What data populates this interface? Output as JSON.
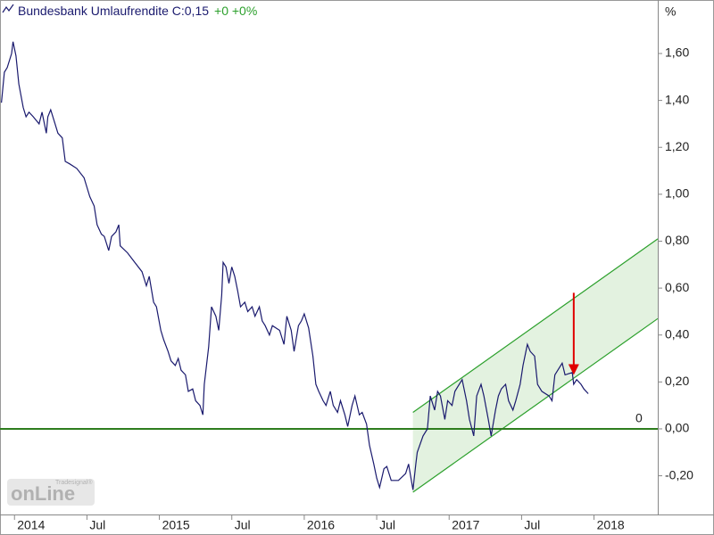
{
  "chart_data": {
    "type": "line",
    "title": "Bundesbank Umlaufrendite C:0,15",
    "change": "+0 +0%",
    "y_label": "%",
    "color": "#1a1a6e",
    "change_color": "#2ca02c",
    "x": [
      2013.91,
      2013.93,
      2013.95,
      2013.98,
      2013.99,
      2014.01,
      2014.03,
      2014.06,
      2014.08,
      2014.1,
      2014.13,
      2014.17,
      2014.19,
      2014.22,
      2014.23,
      2014.25,
      2014.28,
      2014.3,
      2014.33,
      2014.35,
      2014.38,
      2014.43,
      2014.48,
      2014.5,
      2014.52,
      2014.55,
      2014.57,
      2014.6,
      2014.62,
      2014.65,
      2014.67,
      2014.7,
      2014.72,
      2014.73,
      2014.78,
      2014.83,
      2014.88,
      2014.91,
      2014.93,
      2014.96,
      2014.98,
      2015.01,
      2015.03,
      2015.06,
      2015.08,
      2015.11,
      2015.13,
      2015.15,
      2015.18,
      2015.2,
      2015.23,
      2015.25,
      2015.28,
      2015.3,
      2015.31,
      2015.34,
      2015.36,
      2015.39,
      2015.41,
      2015.43,
      2015.44,
      2015.46,
      2015.48,
      2015.5,
      2015.52,
      2015.54,
      2015.56,
      2015.59,
      2015.61,
      2015.64,
      2015.66,
      2015.69,
      2015.71,
      2015.73,
      2015.76,
      2015.78,
      2015.83,
      2015.86,
      2015.88,
      2015.91,
      2015.93,
      2015.96,
      2015.98,
      2016.0,
      2016.03,
      2016.06,
      2016.08,
      2016.1,
      2016.13,
      2016.15,
      2016.18,
      2016.2,
      2016.23,
      2016.25,
      2016.28,
      2016.3,
      2016.33,
      2016.35,
      2016.38,
      2016.4,
      2016.43,
      2016.45,
      2016.48,
      2016.5,
      2016.52,
      2016.55,
      2016.57,
      2016.6,
      2016.65,
      2016.7,
      2016.72,
      2016.75,
      2016.77,
      2016.78,
      2016.82,
      2016.85,
      2016.87,
      2016.9,
      2016.92,
      2016.94,
      2016.97,
      2016.99,
      2017.02,
      2017.04,
      2017.09,
      2017.12,
      2017.14,
      2017.17,
      2017.19,
      2017.22,
      2017.24,
      2017.27,
      2017.29,
      2017.32,
      2017.34,
      2017.36,
      2017.39,
      2017.41,
      2017.44,
      2017.46,
      2017.49,
      2017.51,
      2017.54,
      2017.56,
      2017.59,
      2017.61,
      2017.64,
      2017.69,
      2017.71,
      2017.73,
      2017.78,
      2017.8,
      2017.85,
      2017.86,
      2017.88,
      2017.91,
      2017.93,
      2017.96
    ],
    "values": [
      1.39,
      1.52,
      1.54,
      1.6,
      1.65,
      1.59,
      1.47,
      1.37,
      1.33,
      1.35,
      1.33,
      1.3,
      1.35,
      1.26,
      1.33,
      1.36,
      1.3,
      1.26,
      1.24,
      1.14,
      1.13,
      1.11,
      1.07,
      1.03,
      0.99,
      0.95,
      0.87,
      0.83,
      0.82,
      0.76,
      0.82,
      0.84,
      0.87,
      0.78,
      0.75,
      0.71,
      0.67,
      0.61,
      0.65,
      0.54,
      0.52,
      0.42,
      0.38,
      0.33,
      0.29,
      0.27,
      0.3,
      0.25,
      0.23,
      0.16,
      0.17,
      0.12,
      0.1,
      0.06,
      0.19,
      0.35,
      0.52,
      0.48,
      0.42,
      0.57,
      0.71,
      0.69,
      0.62,
      0.69,
      0.65,
      0.59,
      0.52,
      0.54,
      0.5,
      0.52,
      0.48,
      0.52,
      0.46,
      0.44,
      0.4,
      0.44,
      0.42,
      0.36,
      0.48,
      0.42,
      0.33,
      0.44,
      0.46,
      0.49,
      0.43,
      0.31,
      0.19,
      0.16,
      0.12,
      0.1,
      0.16,
      0.1,
      0.07,
      0.12,
      0.06,
      0.01,
      0.1,
      0.14,
      0.06,
      0.07,
      0.02,
      -0.07,
      -0.15,
      -0.21,
      -0.25,
      -0.17,
      -0.16,
      -0.22,
      -0.22,
      -0.19,
      -0.15,
      -0.26,
      -0.15,
      -0.1,
      -0.03,
      0.0,
      0.14,
      0.08,
      0.16,
      0.14,
      0.04,
      0.12,
      0.1,
      0.16,
      0.21,
      0.12,
      0.04,
      -0.03,
      0.14,
      0.19,
      0.14,
      0.04,
      -0.03,
      0.08,
      0.14,
      0.17,
      0.19,
      0.12,
      0.08,
      0.12,
      0.19,
      0.27,
      0.36,
      0.33,
      0.31,
      0.19,
      0.16,
      0.14,
      0.12,
      0.23,
      0.28,
      0.23,
      0.24,
      0.19,
      0.21,
      0.19,
      0.17,
      0.15
    ],
    "xlim": [
      2013.9,
      2018.44
    ],
    "ylim": [
      -0.365,
      1.828
    ],
    "xticks": [
      {
        "value": 2014,
        "label": "2014"
      },
      {
        "value": 2014.5,
        "label": "Jul"
      },
      {
        "value": 2015,
        "label": "2015"
      },
      {
        "value": 2015.5,
        "label": "Jul"
      },
      {
        "value": 2016,
        "label": "2016"
      },
      {
        "value": 2016.5,
        "label": "Jul"
      },
      {
        "value": 2017,
        "label": "2017"
      },
      {
        "value": 2017.5,
        "label": "Jul"
      },
      {
        "value": 2018,
        "label": "2018"
      }
    ],
    "yticks": [
      {
        "value": -0.2,
        "label": "-0,20"
      },
      {
        "value": 0,
        "label": "0,00"
      },
      {
        "value": 0.2,
        "label": "0,20"
      },
      {
        "value": 0.4,
        "label": "0,40"
      },
      {
        "value": 0.6,
        "label": "0,60"
      },
      {
        "value": 0.8,
        "label": "0,80"
      },
      {
        "value": 1.0,
        "label": "1,00"
      },
      {
        "value": 1.2,
        "label": "1,20"
      },
      {
        "value": 1.4,
        "label": "1,40"
      },
      {
        "value": 1.6,
        "label": "1,60"
      }
    ],
    "channel": {
      "x": [
        2016.75,
        2018.44
      ],
      "upper": [
        0.07,
        0.81
      ],
      "lower": [
        -0.27,
        0.47
      ],
      "color": "#2ca02c",
      "fill": "#e3f2e0"
    },
    "hline": {
      "value": 0,
      "color": "#2e7d1e"
    },
    "arrow": {
      "x": 2017.86,
      "from": 0.58,
      "to": 0.23,
      "color": "#e00000"
    },
    "watermark": {
      "brand": "Tradesignal®",
      "logo": "onLine"
    }
  }
}
